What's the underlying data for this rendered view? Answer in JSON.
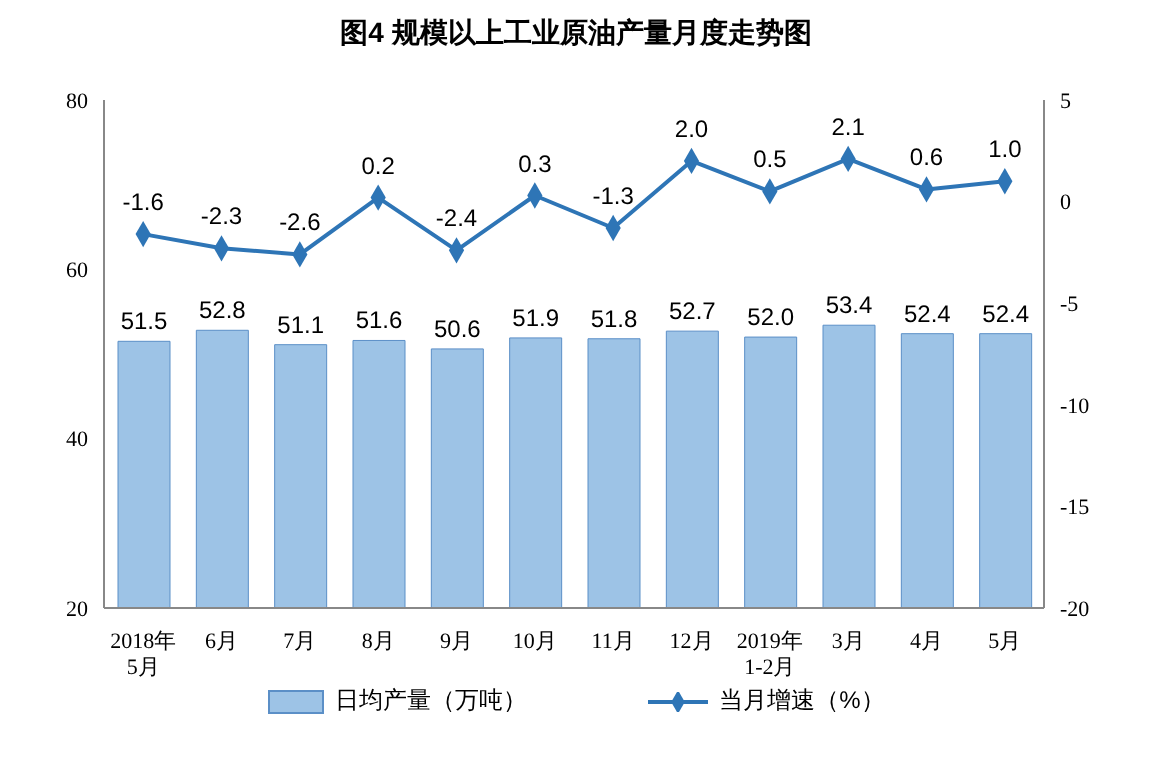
{
  "chart_data": {
    "type": "bar",
    "title": "图4  规模以上工业原油产量月度走势图",
    "categories": [
      "2018年\n5月",
      "6月",
      "7月",
      "8月",
      "9月",
      "10月",
      "11月",
      "12月",
      "2019年\n1-2月",
      "3月",
      "4月",
      "5月"
    ],
    "series": [
      {
        "name": "日均产量（万吨）",
        "color": "#9dc3e6",
        "values": [
          51.5,
          52.8,
          51.1,
          51.6,
          50.6,
          51.9,
          51.8,
          52.7,
          52.0,
          53.4,
          52.4,
          52.4
        ],
        "value_labels": [
          "51.5",
          "52.8",
          "51.1",
          "51.6",
          "50.6",
          "51.9",
          "51.8",
          "52.7",
          "52.0",
          "53.4",
          "52.4",
          "52.4"
        ]
      },
      {
        "name": "当月增速（%）",
        "type": "line",
        "axis": "y2",
        "color": "#2e75b6",
        "marker": "diamond",
        "values": [
          -1.6,
          -2.3,
          -2.6,
          0.2,
          -2.4,
          0.3,
          -1.3,
          2.0,
          0.5,
          2.1,
          0.6,
          1.0
        ],
        "value_labels": [
          "-1.6",
          "-2.3",
          "-2.6",
          "0.2",
          "-2.4",
          "0.3",
          "-1.3",
          "2.0",
          "0.5",
          "2.1",
          "0.6",
          "1.0"
        ]
      }
    ],
    "ylim": [
      20,
      80
    ],
    "yticks": [
      20,
      40,
      60,
      80
    ],
    "y2lim": [
      -20,
      5
    ],
    "y2ticks": [
      -20,
      -15,
      -10,
      -5,
      0,
      5
    ],
    "legend": "bottom"
  }
}
